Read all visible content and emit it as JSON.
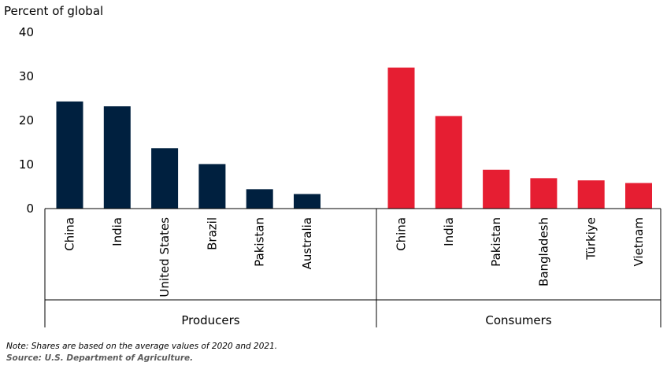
{
  "chart_data": {
    "type": "bar",
    "title": "",
    "ylabel": "Percent of global",
    "ylim": [
      0,
      40
    ],
    "yticks": [
      0,
      10,
      20,
      30,
      40
    ],
    "grid": false,
    "groups": [
      {
        "name": "Producers",
        "color": "#00203f",
        "categories": [
          "China",
          "India",
          "United States",
          "Brazil",
          "Pakistan",
          "Australia"
        ],
        "values": [
          24.3,
          23.2,
          13.7,
          10.1,
          4.4,
          3.3
        ]
      },
      {
        "name": "Consumers",
        "color": "#e61e32",
        "categories": [
          "China",
          "India",
          "Pakistan",
          "Bangladesh",
          "Türkiye",
          "Vietnam"
        ],
        "values": [
          32.0,
          21.0,
          8.8,
          6.9,
          6.4,
          5.8
        ]
      }
    ]
  },
  "footer": {
    "note": "Note: Shares are based on the average values of 2020 and 2021.",
    "source_label": "Source:",
    "source_text": " U.S. Department of Agriculture."
  }
}
